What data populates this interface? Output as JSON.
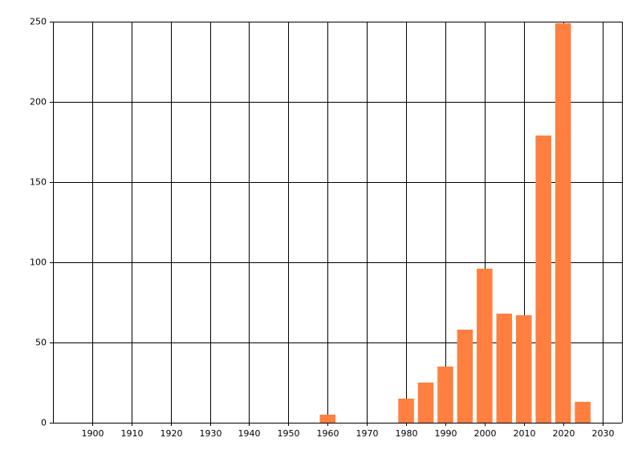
{
  "chart_data": {
    "type": "bar",
    "x": [
      1960,
      1980,
      1985,
      1990,
      1995,
      2000,
      2005,
      2010,
      2015,
      2020,
      2025
    ],
    "values": [
      5,
      15,
      25,
      35,
      58,
      96,
      68,
      67,
      179,
      249,
      13
    ],
    "color": "#ff7f40",
    "xlim": [
      1890,
      2035
    ],
    "xticks": [
      1900,
      1910,
      1920,
      1930,
      1940,
      1950,
      1960,
      1970,
      1980,
      1990,
      2000,
      2010,
      2020,
      2030
    ],
    "ylim": [
      0,
      250
    ],
    "yticks": [
      0,
      50,
      100,
      150,
      200,
      250
    ],
    "grid": true
  }
}
